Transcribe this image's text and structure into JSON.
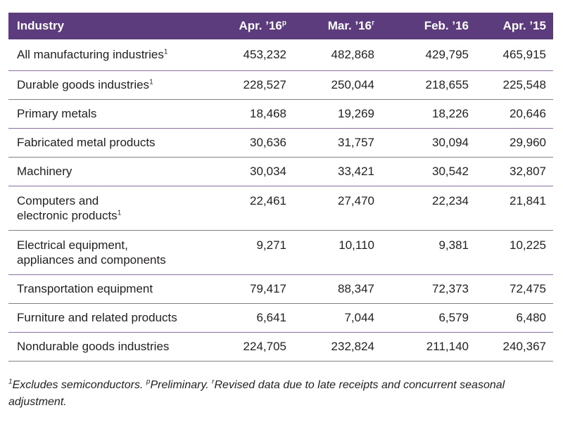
{
  "table": {
    "headers": [
      {
        "label": "Industry",
        "sup": ""
      },
      {
        "label": "Apr. ’16",
        "sup": "p"
      },
      {
        "label": "Mar. ’16",
        "sup": "r"
      },
      {
        "label": "Feb. ’16",
        "sup": ""
      },
      {
        "label": "Apr. ’15",
        "sup": ""
      }
    ],
    "rows": [
      {
        "line1": "All manufacturing industries",
        "line2": "",
        "sup": "1",
        "values": [
          "453,232",
          "482,868",
          "429,795",
          "465,915"
        ]
      },
      {
        "line1": "Durable goods industries",
        "line2": "",
        "sup": "1",
        "values": [
          "228,527",
          "250,044",
          "218,655",
          "225,548"
        ]
      },
      {
        "line1": "Primary metals",
        "line2": "",
        "sup": "",
        "values": [
          "18,468",
          "19,269",
          "18,226",
          "20,646"
        ]
      },
      {
        "line1": "Fabricated metal products",
        "line2": "",
        "sup": "",
        "values": [
          "30,636",
          "31,757",
          "30,094",
          "29,960"
        ]
      },
      {
        "line1": "Machinery",
        "line2": "",
        "sup": "",
        "values": [
          "30,034",
          "33,421",
          "30,542",
          "32,807"
        ]
      },
      {
        "line1": "Computers and",
        "line2": "electronic products",
        "sup": "1",
        "values": [
          "22,461",
          "27,470",
          "22,234",
          "21,841"
        ]
      },
      {
        "line1": "Electrical equipment,",
        "line2": "appliances and components",
        "sup": "",
        "values": [
          "9,271",
          "10,110",
          "9,381",
          "10,225"
        ]
      },
      {
        "line1": "Transportation equipment",
        "line2": "",
        "sup": "",
        "values": [
          "79,417",
          "88,347",
          "72,373",
          "72,475"
        ]
      },
      {
        "line1": "Furniture and related products",
        "line2": "",
        "sup": "",
        "values": [
          "6,641",
          "7,044",
          "6,579",
          "6,480"
        ]
      },
      {
        "line1": "Nondurable goods industries",
        "line2": "",
        "sup": "",
        "values": [
          "224,705",
          "232,824",
          "211,140",
          "240,367"
        ]
      }
    ]
  },
  "footnote": {
    "sup1": "1",
    "text1": "Excludes semiconductors. ",
    "sup2": "p",
    "text2": "Preliminary. ",
    "sup3": "r",
    "text3": "Revised data due to late receipts and concurrent seasonal adjustment."
  },
  "colors": {
    "header_bg": "#5c3c7c",
    "header_text": "#ffffff",
    "rule": "#8c74a8"
  }
}
